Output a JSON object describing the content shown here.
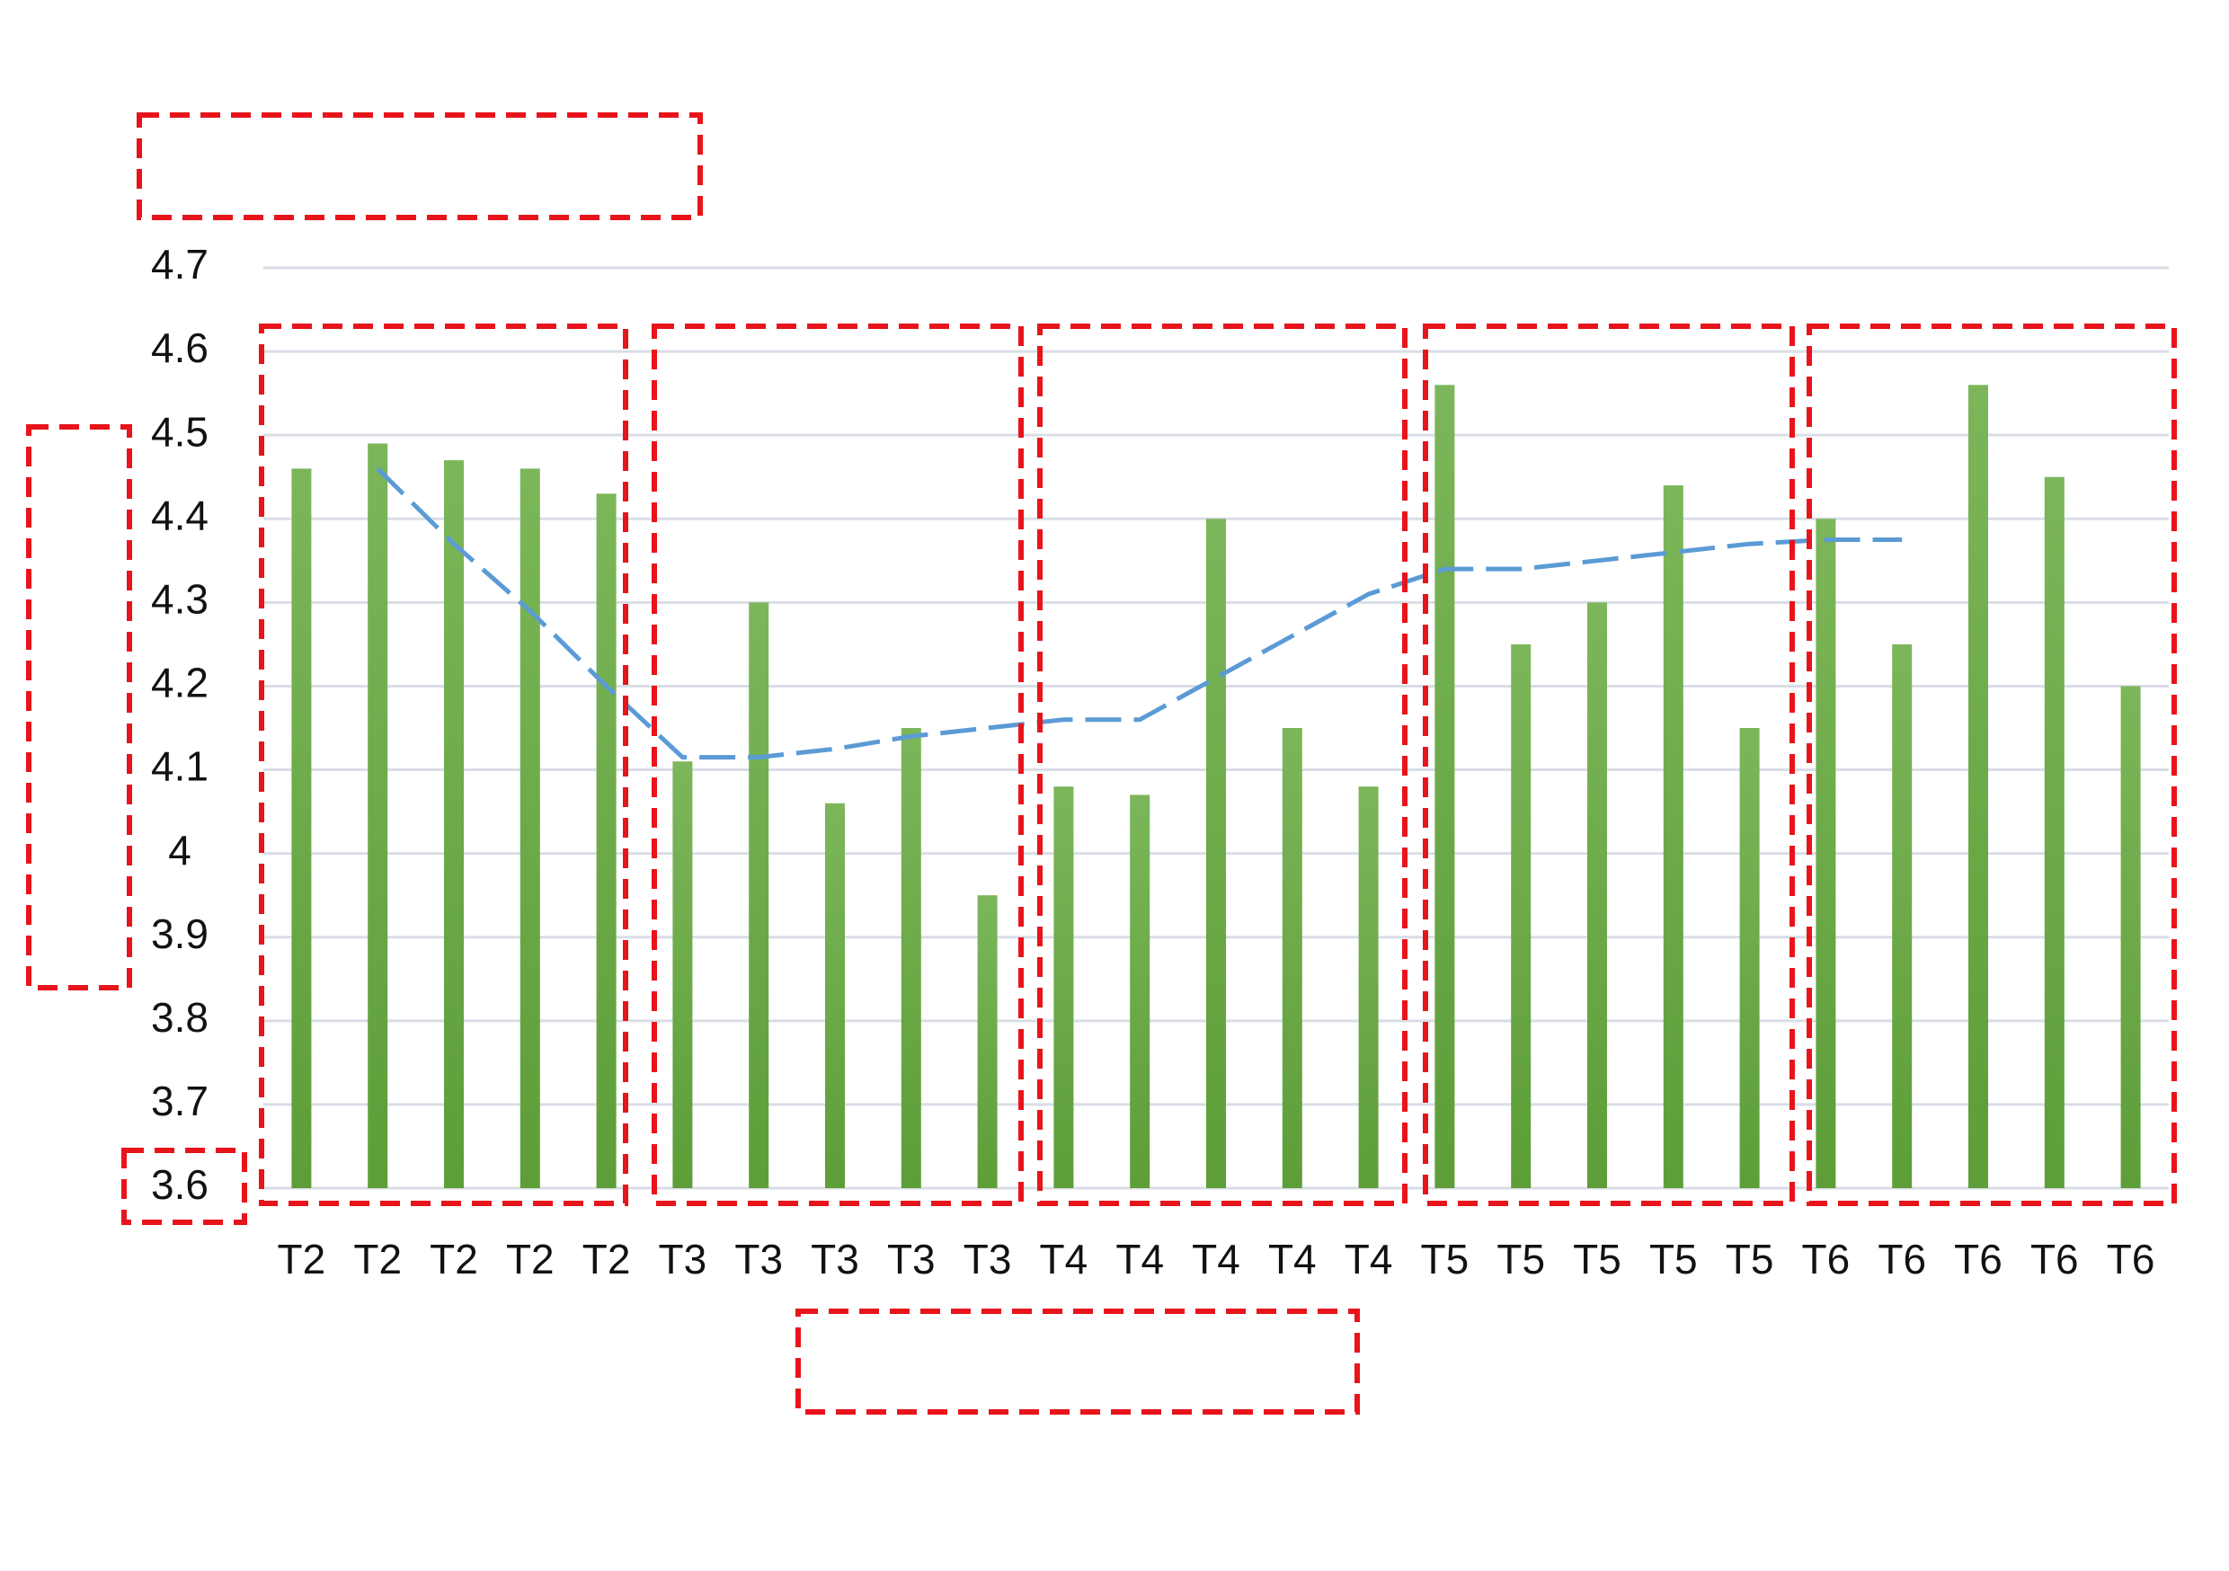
{
  "chart_data": {
    "type": "bar",
    "categories": [
      "T2",
      "T2",
      "T2",
      "T2",
      "T2",
      "T3",
      "T3",
      "T3",
      "T3",
      "T3",
      "T4",
      "T4",
      "T4",
      "T4",
      "T4",
      "T5",
      "T5",
      "T5",
      "T5",
      "T5",
      "T6",
      "T6",
      "T6",
      "T6",
      "T6"
    ],
    "series": [
      {
        "type": "bar",
        "color": "#6aaa45",
        "values": [
          4.46,
          4.49,
          4.47,
          4.46,
          4.43,
          4.11,
          4.3,
          4.06,
          4.15,
          3.95,
          4.08,
          4.07,
          4.4,
          4.15,
          4.08,
          4.56,
          4.25,
          4.3,
          4.44,
          4.15,
          4.4,
          4.25,
          4.56,
          4.45,
          4.2
        ]
      },
      {
        "type": "line",
        "color": "#5b9bd5",
        "dashed": true,
        "values": [
          null,
          4.46,
          4.37,
          4.29,
          4.2,
          4.115,
          4.115,
          4.125,
          4.14,
          4.15,
          4.16,
          4.16,
          4.21,
          4.26,
          4.31,
          4.34,
          4.34,
          4.35,
          4.36,
          4.37,
          4.375,
          4.375,
          null,
          null,
          null
        ]
      }
    ],
    "ylim": [
      3.6,
      4.7
    ],
    "yticks": [
      3.6,
      3.7,
      3.8,
      3.9,
      4,
      4.1,
      4.2,
      4.3,
      4.4,
      4.5,
      4.6,
      4.7
    ],
    "grid": true
  }
}
